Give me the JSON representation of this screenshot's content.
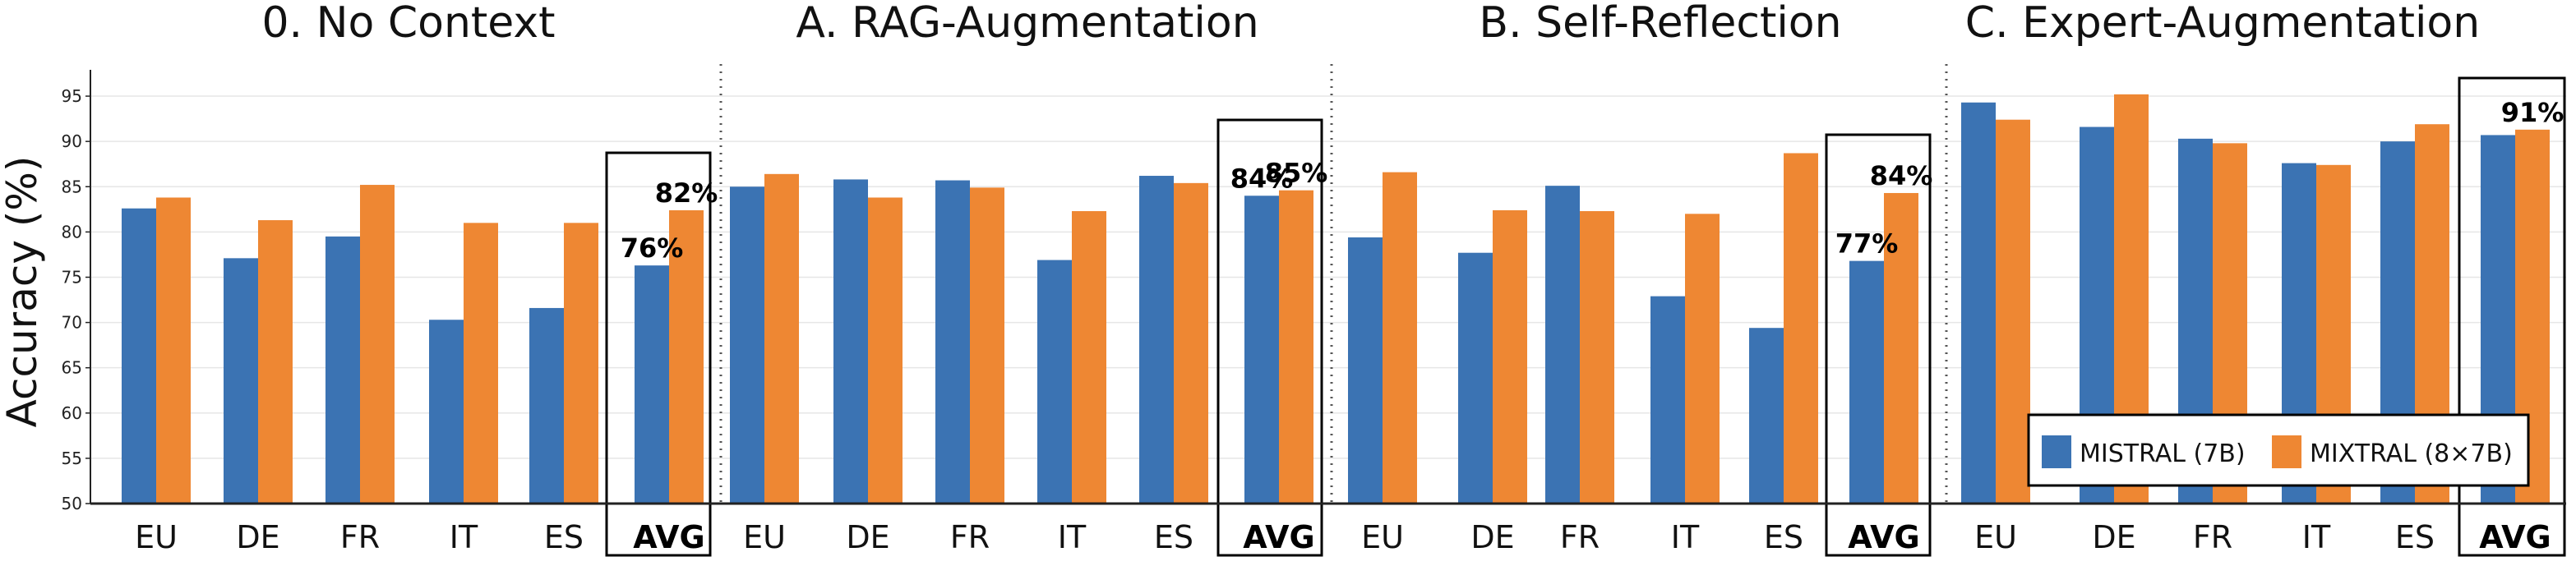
{
  "chart_data": {
    "type": "bar",
    "ylabel": "Accuracy (%)",
    "ylim": [
      50,
      97
    ],
    "yticks": [
      50,
      55,
      60,
      65,
      70,
      75,
      80,
      85,
      90,
      95
    ],
    "grid": "horizontal",
    "legend_position": "bottom-right",
    "colors": {
      "mistral": "#3b73b3",
      "mixtral": "#ee8733"
    },
    "series_names": [
      "MISTRAL (7B)",
      "MIXTRAL (8×7B)"
    ],
    "panels": [
      {
        "title": "0. No Context",
        "categories": [
          "EU",
          "DE",
          "FR",
          "IT",
          "ES",
          "AVG"
        ],
        "series": [
          {
            "name": "MISTRAL (7B)",
            "values": [
              82.6,
              77.1,
              79.5,
              70.3,
              71.6,
              76.3
            ]
          },
          {
            "name": "MIXTRAL (8×7B)",
            "values": [
              83.8,
              81.3,
              85.2,
              81.0,
              81.0,
              82.4
            ]
          }
        ],
        "avg_labels": [
          "76%",
          "82%"
        ]
      },
      {
        "title": "A. RAG-Augmentation",
        "categories": [
          "EU",
          "DE",
          "FR",
          "IT",
          "ES",
          "AVG"
        ],
        "series": [
          {
            "name": "MISTRAL (7B)",
            "values": [
              85.0,
              85.8,
              85.7,
              76.9,
              86.2,
              84.0
            ]
          },
          {
            "name": "MIXTRAL (8×7B)",
            "values": [
              86.4,
              83.8,
              84.9,
              82.3,
              85.4,
              84.6
            ]
          }
        ],
        "avg_labels": [
          "84%",
          "85%"
        ]
      },
      {
        "title": "B. Self-Reflection",
        "categories": [
          "EU",
          "DE",
          "FR",
          "IT",
          "ES",
          "AVG"
        ],
        "series": [
          {
            "name": "MISTRAL (7B)",
            "values": [
              79.4,
              77.7,
              85.1,
              72.9,
              69.4,
              76.8
            ]
          },
          {
            "name": "MIXTRAL (8×7B)",
            "values": [
              86.6,
              82.4,
              82.3,
              82.0,
              88.7,
              84.3
            ]
          }
        ],
        "avg_labels": [
          "77%",
          "84%"
        ]
      },
      {
        "title": "C. Expert-Augmentation",
        "categories": [
          "EU",
          "DE",
          "FR",
          "IT",
          "ES",
          "AVG"
        ],
        "series": [
          {
            "name": "MISTRAL (7B)",
            "values": [
              94.3,
              91.6,
              90.3,
              87.6,
              90.0,
              90.7
            ]
          },
          {
            "name": "MIXTRAL (8×7B)",
            "values": [
              92.4,
              95.2,
              89.8,
              87.4,
              91.9,
              91.3
            ]
          }
        ],
        "avg_labels": [
          "",
          "91%"
        ]
      }
    ]
  }
}
